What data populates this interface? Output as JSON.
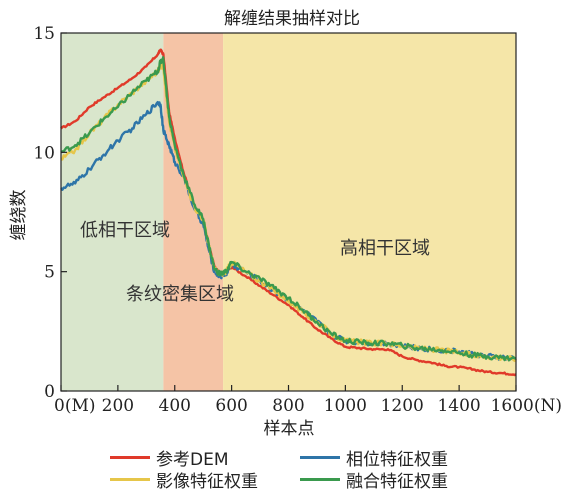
{
  "chart_data": {
    "type": "line",
    "title": "解缠结果抽样对比",
    "xlabel": "样本点",
    "ylabel": "缠绕数",
    "xlim": [
      0,
      1600
    ],
    "ylim": [
      0,
      15
    ],
    "x_ticks": [
      {
        "value": 0,
        "label": "0(M)"
      },
      {
        "value": 200,
        "label": "200"
      },
      {
        "value": 400,
        "label": "400"
      },
      {
        "value": 600,
        "label": "600"
      },
      {
        "value": 800,
        "label": "800"
      },
      {
        "value": 1000,
        "label": "1000"
      },
      {
        "value": 1200,
        "label": "1200"
      },
      {
        "value": 1400,
        "label": "1400"
      },
      {
        "value": 1600,
        "label": "1600(N)"
      }
    ],
    "y_ticks": [
      0,
      5,
      10,
      15
    ],
    "grid": false,
    "legend_position": "bottom",
    "regions": [
      {
        "label": "低相干区域",
        "x_range": [
          0,
          360
        ],
        "color": "#d9e6cc"
      },
      {
        "label": "条纹密集区域",
        "x_range": [
          360,
          570
        ],
        "color": "#f5c4a6"
      },
      {
        "label": "高相干区域",
        "x_range": [
          570,
          1600
        ],
        "color": "#f5e6a8"
      }
    ],
    "series": [
      {
        "name": "参考DEM",
        "color": "#e03a2a",
        "x": [
          0,
          50,
          100,
          150,
          200,
          250,
          300,
          340,
          350,
          360,
          380,
          400,
          430,
          470,
          500,
          520,
          540,
          560,
          580,
          600,
          650,
          700,
          750,
          800,
          850,
          900,
          950,
          1000,
          1050,
          1100,
          1150,
          1200,
          1250,
          1300,
          1350,
          1400,
          1450,
          1500,
          1550,
          1600
        ],
        "y": [
          11.0,
          11.3,
          11.9,
          12.3,
          12.7,
          13.1,
          13.6,
          14.1,
          14.3,
          14.1,
          11.7,
          10.6,
          9.2,
          7.7,
          7.2,
          6.1,
          5.2,
          4.9,
          5.0,
          5.2,
          4.8,
          4.4,
          4.0,
          3.6,
          3.1,
          2.6,
          2.2,
          1.85,
          1.8,
          1.75,
          1.75,
          1.45,
          1.3,
          1.2,
          1.05,
          1.0,
          0.9,
          0.8,
          0.75,
          0.7
        ]
      },
      {
        "name": "相位特征权重",
        "color": "#2e75a8",
        "x": [
          0,
          50,
          100,
          150,
          200,
          250,
          300,
          340,
          350,
          360,
          380,
          400,
          430,
          470,
          500,
          520,
          540,
          560,
          580,
          600,
          650,
          700,
          750,
          800,
          850,
          900,
          950,
          1000,
          1050,
          1100,
          1150,
          1200,
          1250,
          1300,
          1350,
          1400,
          1450,
          1500,
          1550,
          1600
        ],
        "y": [
          8.5,
          8.7,
          9.3,
          9.9,
          10.5,
          11.0,
          11.6,
          12.1,
          12.0,
          10.9,
          10.3,
          9.6,
          9.0,
          7.6,
          7.0,
          5.9,
          5.0,
          4.8,
          4.9,
          5.3,
          5.0,
          4.6,
          4.2,
          3.8,
          3.4,
          2.9,
          2.4,
          2.1,
          2.05,
          2.0,
          2.0,
          1.9,
          1.8,
          1.75,
          1.7,
          1.65,
          1.55,
          1.45,
          1.4,
          1.35
        ]
      },
      {
        "name": "影像特征权重",
        "color": "#e6c64a",
        "x": [
          0,
          50,
          100,
          150,
          200,
          250,
          300,
          340,
          350,
          360,
          380,
          400,
          430,
          470,
          500,
          520,
          540,
          560,
          580,
          600,
          650,
          700,
          750,
          800,
          850,
          900,
          950,
          1000,
          1050,
          1100,
          1150,
          1200,
          1250,
          1300,
          1350,
          1400,
          1450,
          1500,
          1550,
          1600
        ],
        "y": [
          9.7,
          10.1,
          10.8,
          11.4,
          12.0,
          12.5,
          13.0,
          13.4,
          13.6,
          13.6,
          11.3,
          10.2,
          9.0,
          7.7,
          7.2,
          6.1,
          5.1,
          4.9,
          5.0,
          5.4,
          5.0,
          4.6,
          4.2,
          3.8,
          3.3,
          2.9,
          2.4,
          2.1,
          2.05,
          2.0,
          2.0,
          1.9,
          1.8,
          1.75,
          1.7,
          1.6,
          1.5,
          1.45,
          1.4,
          1.35
        ]
      },
      {
        "name": "融合特征权重",
        "color": "#3a9a4e",
        "x": [
          0,
          50,
          100,
          150,
          200,
          250,
          300,
          340,
          350,
          360,
          380,
          400,
          430,
          470,
          500,
          520,
          540,
          560,
          580,
          600,
          650,
          700,
          750,
          800,
          850,
          900,
          950,
          1000,
          1050,
          1100,
          1150,
          1200,
          1250,
          1300,
          1350,
          1400,
          1450,
          1500,
          1550,
          1600
        ],
        "y": [
          10.0,
          10.3,
          10.8,
          11.4,
          11.9,
          12.5,
          13.0,
          13.4,
          13.8,
          13.9,
          11.5,
          10.3,
          9.1,
          7.8,
          7.2,
          6.1,
          5.1,
          4.9,
          5.0,
          5.4,
          5.0,
          4.7,
          4.3,
          3.9,
          3.4,
          2.9,
          2.4,
          2.1,
          2.05,
          2.0,
          2.0,
          1.9,
          1.8,
          1.75,
          1.7,
          1.6,
          1.5,
          1.45,
          1.4,
          1.35
        ]
      }
    ]
  }
}
